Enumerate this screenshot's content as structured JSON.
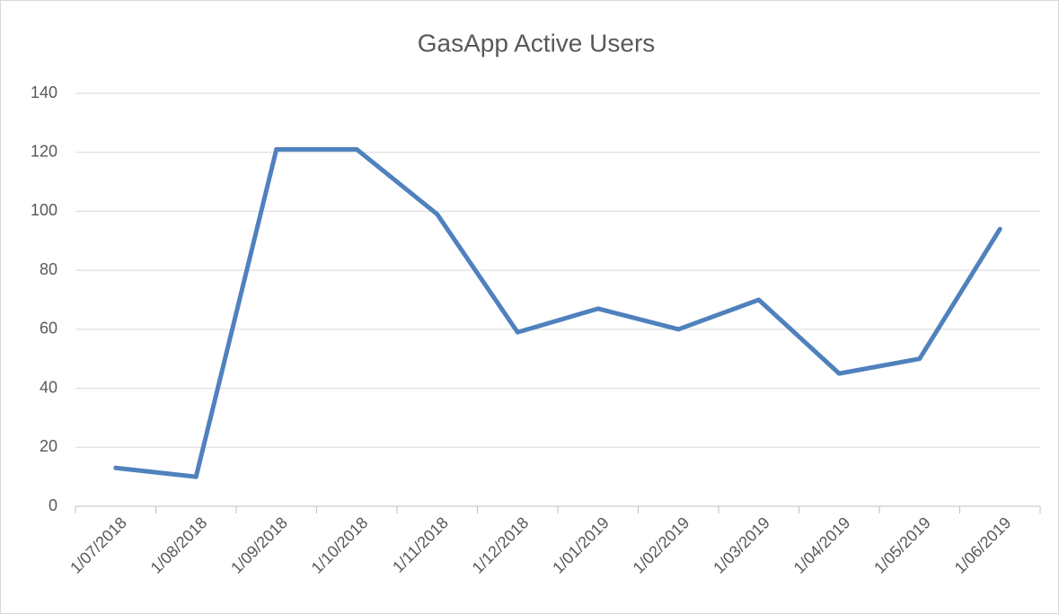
{
  "chart_data": {
    "type": "line",
    "title": "GasApp Active Users",
    "categories": [
      "1/07/2018",
      "1/08/2018",
      "1/09/2018",
      "1/10/2018",
      "1/11/2018",
      "1/12/2018",
      "1/01/2019",
      "1/02/2019",
      "1/03/2019",
      "1/04/2019",
      "1/05/2019",
      "1/06/2019"
    ],
    "values": [
      13,
      10,
      121,
      121,
      99,
      59,
      67,
      60,
      70,
      45,
      50,
      94
    ],
    "color": "#4f81bd",
    "ylim": [
      0,
      140
    ],
    "yticks": [
      0,
      20,
      40,
      60,
      80,
      100,
      120,
      140
    ],
    "grid": true
  }
}
